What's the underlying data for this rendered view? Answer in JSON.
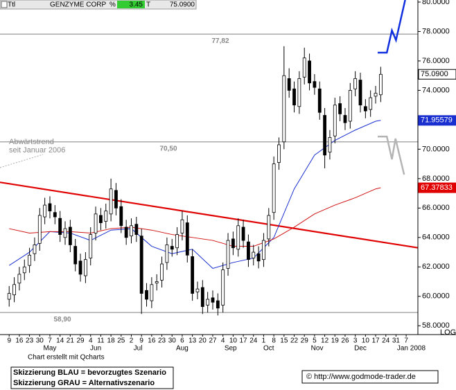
{
  "header": {
    "symbol": "Ttl",
    "name": "GENZYME CORP",
    "pct_label": "%",
    "change": "3.45",
    "t_label": "T",
    "last": "75.0900"
  },
  "chart_data": {
    "type": "candlestick",
    "xlim": [
      -1.8,
      80.3
    ],
    "ylim": [
      57.4,
      80.14
    ],
    "yticks": [
      {
        "value": 58,
        "label": "58.0000"
      },
      {
        "value": 60,
        "label": "60.0000"
      },
      {
        "value": 62,
        "label": "62.0000"
      },
      {
        "value": 64,
        "label": "64.0000"
      },
      {
        "value": 66,
        "label": "66.0000"
      },
      {
        "value": 68,
        "label": "68.0000"
      },
      {
        "value": 70,
        "label": "70.0000"
      },
      {
        "value": 72,
        "label": "72.0000"
      },
      {
        "value": 74,
        "label": "74.0000"
      },
      {
        "value": 76,
        "label": "76.0000"
      },
      {
        "value": 78,
        "label": "78.0000"
      },
      {
        "value": 80,
        "label": "80.0000"
      }
    ],
    "xticks": [
      {
        "value": 0,
        "label": "9"
      },
      {
        "value": 2,
        "label": "16"
      },
      {
        "value": 4,
        "label": "23"
      },
      {
        "value": 6,
        "label": "30"
      },
      {
        "value": 8,
        "label": "7"
      },
      {
        "value": 10,
        "label": "14"
      },
      {
        "value": 12,
        "label": "21"
      },
      {
        "value": 14,
        "label": "29"
      },
      {
        "value": 16,
        "label": "4"
      },
      {
        "value": 18,
        "label": "11"
      },
      {
        "value": 20,
        "label": "18"
      },
      {
        "value": 22,
        "label": "25"
      },
      {
        "value": 24,
        "label": "2"
      },
      {
        "value": 26,
        "label": "9"
      },
      {
        "value": 28,
        "label": "16"
      },
      {
        "value": 30,
        "label": "23"
      },
      {
        "value": 32,
        "label": "30"
      },
      {
        "value": 34,
        "label": "6"
      },
      {
        "value": 36,
        "label": "13"
      },
      {
        "value": 38,
        "label": "20"
      },
      {
        "value": 40,
        "label": "27"
      },
      {
        "value": 42,
        "label": "4"
      },
      {
        "value": 44,
        "label": "10"
      },
      {
        "value": 46,
        "label": "17"
      },
      {
        "value": 48,
        "label": "24"
      },
      {
        "value": 50,
        "label": "1"
      },
      {
        "value": 52,
        "label": "8"
      },
      {
        "value": 54,
        "label": "15"
      },
      {
        "value": 56,
        "label": "22"
      },
      {
        "value": 58,
        "label": "29"
      },
      {
        "value": 60,
        "label": "5"
      },
      {
        "value": 62,
        "label": "12"
      },
      {
        "value": 64,
        "label": "19"
      },
      {
        "value": 66,
        "label": "26"
      },
      {
        "value": 68,
        "label": "3"
      },
      {
        "value": 70,
        "label": "10"
      },
      {
        "value": 72,
        "label": "17"
      },
      {
        "value": 74,
        "label": "24"
      },
      {
        "value": 76,
        "label": "31"
      },
      {
        "value": 78,
        "label": "7"
      }
    ],
    "month_labels": [
      {
        "value": 8,
        "label": "May"
      },
      {
        "value": 17,
        "label": "Jun"
      },
      {
        "value": 25.3,
        "label": "Jul"
      },
      {
        "value": 34,
        "label": "Aug"
      },
      {
        "value": 43.5,
        "label": "Sep"
      },
      {
        "value": 51,
        "label": "Oct"
      },
      {
        "value": 60.5,
        "label": "Nov"
      },
      {
        "value": 69,
        "label": "Dec"
      },
      {
        "value": 79,
        "label": "Jan 2008"
      }
    ],
    "up_color": "#ffffff",
    "down_color": "#000000",
    "open": [
      59.8,
      60.1,
      60.9,
      61.6,
      62.1,
      62.9,
      63.6,
      65.4,
      66.3,
      65.7,
      65.3,
      64.0,
      64.7,
      63.4,
      62.4,
      61.4,
      62.6,
      64.3,
      65.5,
      65.1,
      65.6,
      67.2,
      66.1,
      64.7,
      64.1,
      64.9,
      64.1,
      60.4,
      59.7,
      60.9,
      61.1,
      62.3,
      63.4,
      63.3,
      64.3,
      65.0,
      62.7,
      60.3,
      60.6,
      59.4,
      59.9,
      59.7,
      59.4,
      61.9,
      63.9,
      63.2,
      64.7,
      63.7,
      62.6,
      62.9,
      62.5,
      63.9,
      65.7,
      69.1,
      70.5,
      74.8,
      74.1,
      72.9,
      74.9,
      76.0,
      74.6,
      74.1,
      72.3,
      69.8,
      70.9,
      73.1,
      72.3,
      71.9,
      74.1,
      74.7,
      72.9,
      72.7,
      73.6,
      73.7
    ],
    "high": [
      60.7,
      61.3,
      62.0,
      62.5,
      63.3,
      64.0,
      66.0,
      66.7,
      66.8,
      66.2,
      65.8,
      65.1,
      65.2,
      63.9,
      62.9,
      63.0,
      64.7,
      66.1,
      66.0,
      66.3,
      68.0,
      67.7,
      66.6,
      65.2,
      65.3,
      65.4,
      64.6,
      60.9,
      61.3,
      61.5,
      62.7,
      64.0,
      63.9,
      64.7,
      65.8,
      65.5,
      63.2,
      61.0,
      61.1,
      60.3,
      60.4,
      60.2,
      62.3,
      64.3,
      64.4,
      65.3,
      65.2,
      64.2,
      63.5,
      63.4,
      64.3,
      66.0,
      69.5,
      70.8,
      77.0,
      75.5,
      74.6,
      75.3,
      76.9,
      76.5,
      75.1,
      74.6,
      72.8,
      71.3,
      73.5,
      73.6,
      72.8,
      74.5,
      75.3,
      75.2,
      73.4,
      74.0,
      74.3,
      75.6
    ],
    "low": [
      59.3,
      59.6,
      60.4,
      61.1,
      61.6,
      62.4,
      63.1,
      64.9,
      65.3,
      64.9,
      63.7,
      63.5,
      63.0,
      61.7,
      61.0,
      60.9,
      62.1,
      63.8,
      64.5,
      64.6,
      65.1,
      65.5,
      64.3,
      63.5,
      63.6,
      63.7,
      58.8,
      59.3,
      59.2,
      60.4,
      60.6,
      61.8,
      62.7,
      62.8,
      63.8,
      62.3,
      59.7,
      59.8,
      58.8,
      58.9,
      59.1,
      58.7,
      58.9,
      61.4,
      62.8,
      62.7,
      63.3,
      62.0,
      62.1,
      61.9,
      62.0,
      63.4,
      65.2,
      68.6,
      70.0,
      73.5,
      72.5,
      72.4,
      74.4,
      74.0,
      73.7,
      72.0,
      68.7,
      69.3,
      70.4,
      71.9,
      71.3,
      71.4,
      73.6,
      72.5,
      72.1,
      72.2,
      73.1,
      73.2
    ],
    "close": [
      60.2,
      60.8,
      61.5,
      62.0,
      62.8,
      63.5,
      65.5,
      66.2,
      65.8,
      65.4,
      64.2,
      64.6,
      63.5,
      62.2,
      61.5,
      62.5,
      64.2,
      65.6,
      65.0,
      65.8,
      67.3,
      66.0,
      64.8,
      64.0,
      64.8,
      64.2,
      60.2,
      59.8,
      60.8,
      61.0,
      62.2,
      63.5,
      63.2,
      64.2,
      65.2,
      62.8,
      60.2,
      60.5,
      59.3,
      59.8,
      59.6,
      59.2,
      61.8,
      63.8,
      63.3,
      64.8,
      63.8,
      62.5,
      63.0,
      62.4,
      63.8,
      65.5,
      69.0,
      70.3,
      75.0,
      74.0,
      73.0,
      74.8,
      76.2,
      74.5,
      74.2,
      72.5,
      69.6,
      70.8,
      73.0,
      72.4,
      71.8,
      74.0,
      74.8,
      73.0,
      72.6,
      73.5,
      73.8,
      75.09
    ],
    "series": [
      {
        "color": "#1a2fd0",
        "x": [
          0,
          4,
          8,
          12,
          16,
          20,
          24,
          28,
          32,
          36,
          40,
          44,
          48,
          52,
          56,
          60,
          64,
          68,
          72,
          73
        ],
        "values": [
          62.1,
          63.0,
          64.4,
          64.3,
          63.8,
          64.5,
          64.6,
          63.4,
          62.9,
          63.2,
          61.9,
          62.3,
          62.6,
          64.0,
          67.3,
          69.6,
          70.6,
          71.3,
          71.9,
          71.96
        ]
      },
      {
        "color": "#d01010",
        "x": [
          0,
          4,
          8,
          12,
          16,
          20,
          24,
          28,
          32,
          36,
          40,
          44,
          48,
          52,
          56,
          60,
          64,
          68,
          72,
          73
        ],
        "values": [
          64.6,
          64.3,
          64.4,
          64.4,
          64.3,
          64.6,
          64.7,
          64.5,
          64.2,
          64.0,
          63.8,
          63.4,
          63.4,
          63.9,
          64.7,
          65.6,
          66.2,
          66.7,
          67.3,
          67.38
        ]
      }
    ],
    "trendline": {
      "color": "#e00000",
      "x": [
        -1.8,
        80.3
      ],
      "values": [
        67.75,
        63.3
      ]
    },
    "scenarios": [
      {
        "color": "#1030e0",
        "x": [
          72.4,
          74.2,
          75.2,
          76.0,
          77.8
        ],
        "values": [
          76.56,
          76.56,
          78.07,
          77.41,
          80.14
        ]
      },
      {
        "color": "#b4b4b4",
        "x": [
          72.4,
          74.2,
          75.2,
          75.9,
          77.6
        ],
        "values": [
          70.86,
          70.86,
          69.31,
          70.72,
          68.27
        ]
      }
    ],
    "levels": [
      {
        "value": 77.82,
        "label": "77,82"
      },
      {
        "value": 70.5,
        "label": "70,50"
      },
      {
        "value": 58.9,
        "label": "58,90"
      }
    ],
    "price_tags": [
      {
        "value": 75.09,
        "label": "75.0900",
        "color": "#ffffff"
      },
      {
        "value": 71.95579,
        "color": "#1a2fd0"
      },
      {
        "value": 67.37833,
        "color": "#e00000"
      }
    ],
    "annotation": [
      "Abwärtstrend",
      "seit Januar 2006"
    ],
    "scale_label": "LOG",
    "credit": "Chart erstellt mit Qcharts",
    "legend_notes": [
      "Skizzierung BLAU = bevorzugtes Szenario",
      "Skizzierung GRAU = Alternativszenario"
    ],
    "source": "© http://www.godmode-trader.de"
  }
}
